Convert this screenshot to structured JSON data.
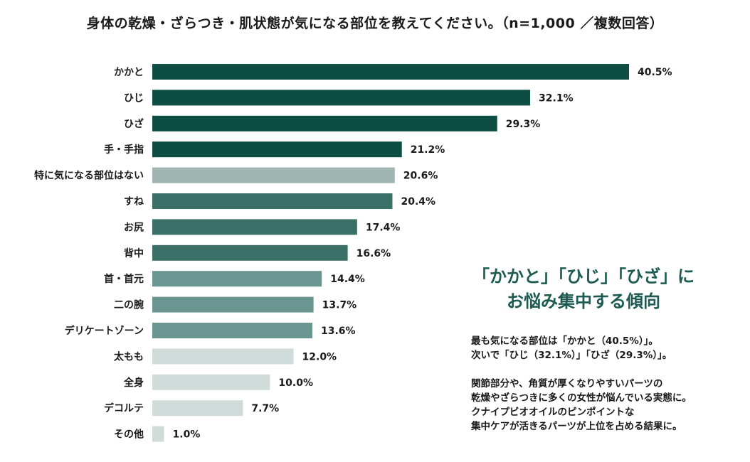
{
  "title": "身体の乾燥・ざらつき・肌状態が気になる部位を教えてください。（n=1,000 ／複数回答）",
  "chart_data": {
    "type": "bar",
    "orientation": "horizontal",
    "categories": [
      "かかと",
      "ひじ",
      "ひざ",
      "手・手指",
      "特に気になる部位はない",
      "すね",
      "お尻",
      "背中",
      "首・首元",
      "二の腕",
      "デリケートゾーン",
      "太もも",
      "全身",
      "デコルテ",
      "その他"
    ],
    "values": [
      40.5,
      32.1,
      29.3,
      21.2,
      20.6,
      20.4,
      17.4,
      16.6,
      14.4,
      13.7,
      13.6,
      12.0,
      10.0,
      7.7,
      1.0
    ],
    "value_labels": [
      "40.5%",
      "32.1%",
      "29.3%",
      "21.2%",
      "20.6%",
      "20.4%",
      "17.4%",
      "16.6%",
      "14.4%",
      "13.7%",
      "13.6%",
      "12.0%",
      "10.0%",
      "7.7%",
      "1.0%"
    ],
    "bar_colors": [
      "#0d4d44",
      "#0d4d44",
      "#0d4d44",
      "#0d4d44",
      "#9fb5b1",
      "#3b7068",
      "#3b7068",
      "#3b7068",
      "#6b9590",
      "#6b9590",
      "#6b9590",
      "#cfdcda",
      "#cfdcda",
      "#cfdcda",
      "#cfdcda"
    ],
    "unit": "%",
    "grid": false
  },
  "callout": {
    "headline_line1": "「かかと」「ひじ」「ひざ」に",
    "headline_line2": "お悩み集中する傾向",
    "para1_line1": "最も気になる部位は「かかと（40.5%）」。",
    "para1_line2": "次いで「ひじ（32.1%）」「ひざ（29.3%）」。",
    "para2_line1": "関節部分や、角質が厚くなりやすいパーツの",
    "para2_line2": "乾燥やざらつきに多くの女性が悩んでいる実態に。",
    "para2_line3": "クナイプビオオイルのピンポイントな",
    "para2_line4": "集中ケアが活きるパーツが上位を占める結果に。"
  },
  "colors": {
    "accent": "#1d5a51"
  }
}
